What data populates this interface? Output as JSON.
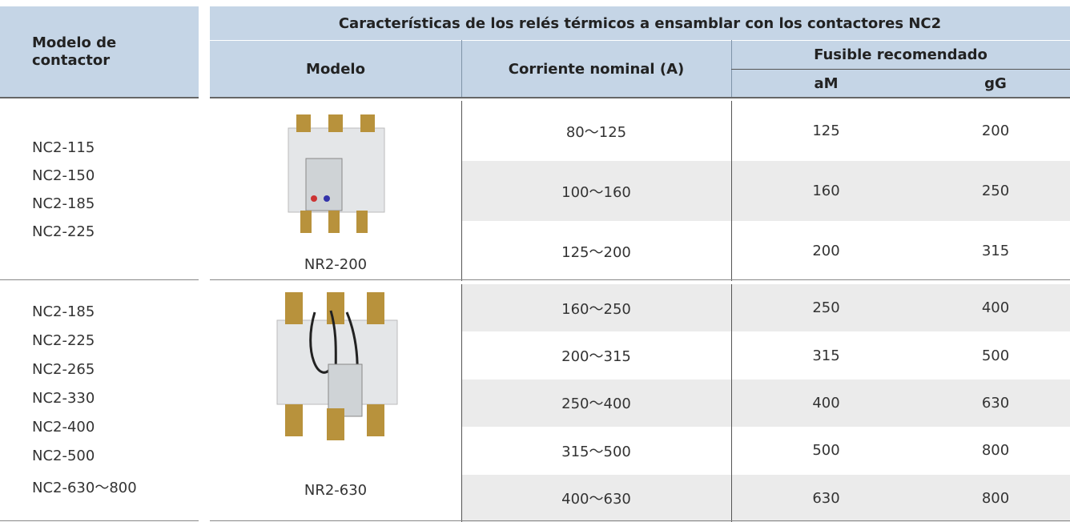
{
  "table": {
    "title": "Características de los relés térmicos a ensamblar con los contactores NC2",
    "header": {
      "contactor": "Modelo de contactor",
      "model": "Modelo",
      "current": "Corriente nominal (A)",
      "fuse": "Fusible recomendado",
      "am": "aM",
      "gg": "gG"
    },
    "groups": [
      {
        "contactors": [
          "NC2-115",
          "NC2-150",
          "NC2-185",
          "NC2-225"
        ],
        "relay": "NR2-200",
        "rows": [
          [
            "80～125",
            125,
            200
          ],
          [
            "100～160",
            160,
            250
          ],
          [
            "125～200",
            200,
            315
          ]
        ]
      },
      {
        "contactors": [
          "NC2-185",
          "NC2-225",
          "NC2-265",
          "NC2-330",
          "NC2-400",
          "NC2-500",
          "NC2-630～800"
        ],
        "relay": "NR2-630",
        "rows": [
          [
            "160～250",
            250,
            400
          ],
          [
            "200～315",
            315,
            500
          ],
          [
            "250～400",
            400,
            630
          ],
          [
            "315～500",
            500,
            800
          ],
          [
            "400～630",
            630,
            800
          ]
        ]
      }
    ]
  }
}
